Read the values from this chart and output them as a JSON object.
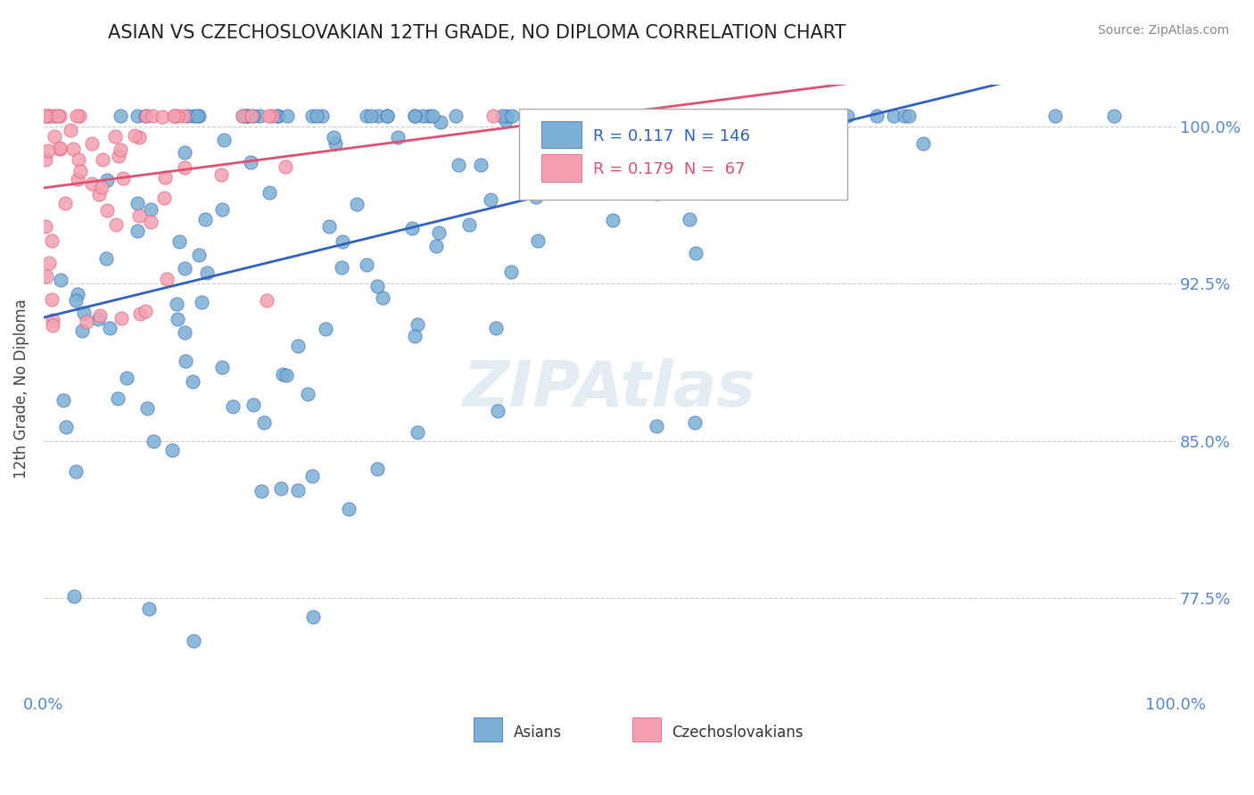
{
  "title": "ASIAN VS CZECHOSLOVAKIAN 12TH GRADE, NO DIPLOMA CORRELATION CHART",
  "source_text": "Source: ZipAtlas.com",
  "xlabel": "",
  "ylabel": "12th Grade, No Diploma",
  "xlim": [
    0.0,
    1.0
  ],
  "ylim": [
    0.73,
    1.02
  ],
  "yticks": [
    0.775,
    0.85,
    0.925,
    1.0
  ],
  "ytick_labels": [
    "77.5%",
    "85.0%",
    "92.5%",
    "100.0%"
  ],
  "xtick_labels": [
    "0.0%",
    "100.0%"
  ],
  "xticks": [
    0.0,
    1.0
  ],
  "blue_R": 0.117,
  "blue_N": 146,
  "pink_R": 0.179,
  "pink_N": 67,
  "blue_color": "#7bafd4",
  "pink_color": "#f4a0b0",
  "blue_line_color": "#3060c0",
  "pink_line_color": "#e05070",
  "legend_label_blue": "Asians",
  "legend_label_pink": "Czechoslovakians",
  "watermark": "ZIPAtlas",
  "watermark_color": "#c8d8e8",
  "background_color": "#ffffff",
  "grid_color": "#cccccc",
  "title_fontsize": 15,
  "axis_label_color": "#5588cc",
  "tick_label_color": "#5588cc",
  "seed": 42
}
